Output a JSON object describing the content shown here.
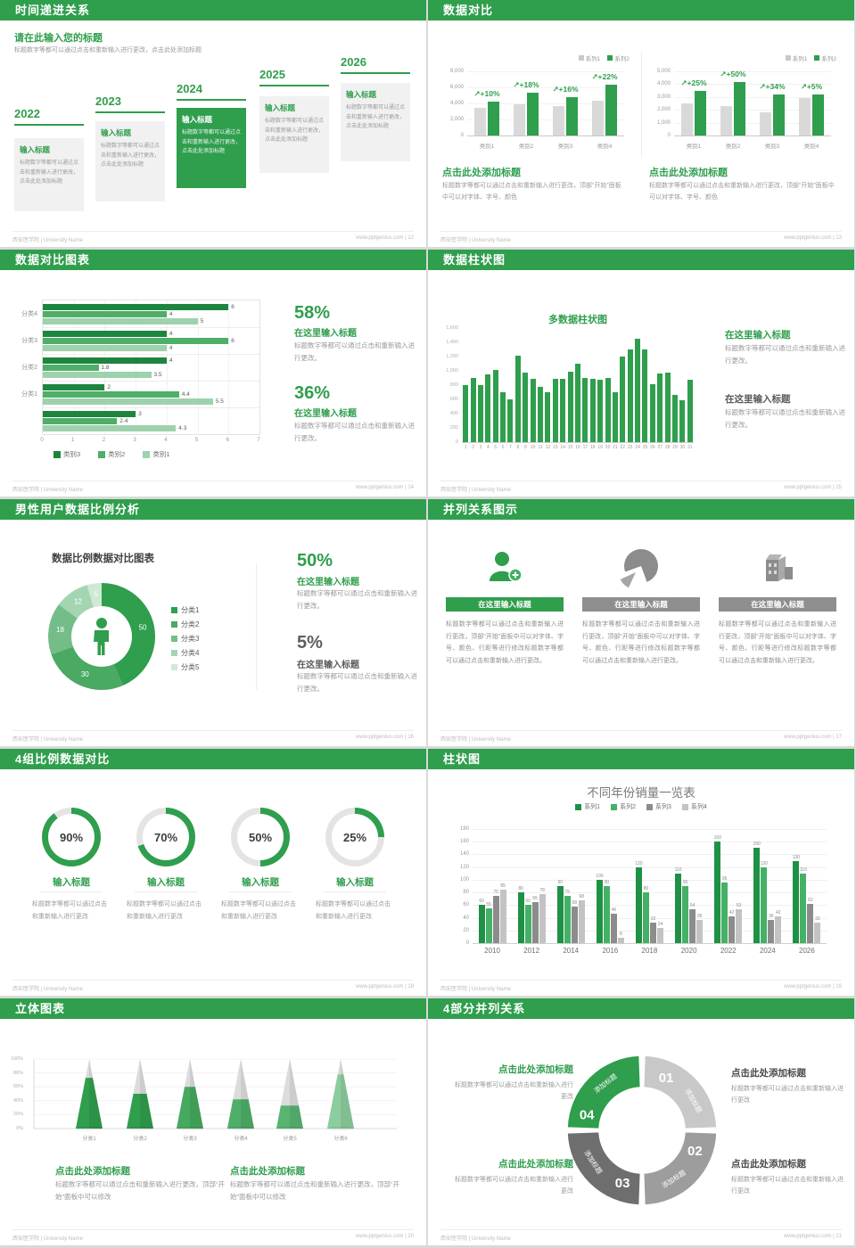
{
  "footer": {
    "left": "西安医学院 | University Name"
  },
  "colors": {
    "green": "#2f9e4d",
    "bar_gray": "#d9d9d9",
    "text_gray": "#9a9a9a"
  },
  "slides": {
    "s1": {
      "title": "时间递进关系",
      "page_label": "www.pptgenius.com | 12",
      "heading": "请在此输入您的标题",
      "intro": "标题数字等都可以通过点击和重新输入进行更改，点击此处添加标题",
      "highlight_index": 2,
      "items": [
        {
          "year": "2022",
          "title": "输入标题",
          "body": "标题数字等都可以通过点击和重新输入进行更改，点击此处添加标题"
        },
        {
          "year": "2023",
          "title": "输入标题",
          "body": "标题数字等都可以通过点击和重新输入进行更改，点击此处添加标题"
        },
        {
          "year": "2024",
          "title": "输入标题",
          "body": "标题数字等都可以通过点击和重新输入进行更改，点击此处添加标题"
        },
        {
          "year": "2025",
          "title": "输入标题",
          "body": "标题数字等都可以通过点击和重新输入进行更改，点击此处添加标题"
        },
        {
          "year": "2026",
          "title": "输入标题",
          "body": "标题数字等都可以通过点击和重新输入进行更改，点击此处添加标题"
        }
      ]
    },
    "s2": {
      "title": "数据对比",
      "page_label": "www.pptgenius.com | 13",
      "legend": [
        "系列1",
        "系列2"
      ],
      "charts": [
        {
          "yticks": [
            "8,000",
            "6,000",
            "4,000",
            "2,000",
            "0"
          ],
          "ymax": 8000,
          "categories": [
            "类别1",
            "类别2",
            "类别3",
            "类别4"
          ],
          "gray": [
            3500,
            3900,
            3700,
            4300
          ],
          "green": [
            4200,
            5300,
            4800,
            6300
          ],
          "pct": [
            "+10%",
            "+18%",
            "+16%",
            "+22%"
          ]
        },
        {
          "yticks": [
            "5,000",
            "4,000",
            "3,000",
            "2,000",
            "1,000",
            "0"
          ],
          "ymax": 5000,
          "categories": [
            "类别1",
            "类别2",
            "类别3",
            "类别4"
          ],
          "gray": [
            2500,
            2300,
            1800,
            2900
          ],
          "green": [
            3500,
            4200,
            3200,
            3200
          ],
          "pct": [
            "+25%",
            "+50%",
            "+34%",
            "+5%"
          ]
        }
      ],
      "block": {
        "heading": "点击此处添加标题",
        "body": "标题数字等都可以通过点击和重新输入进行更改，顶部“开始”面板中可以对字体、字号、颜色"
      }
    },
    "s3": {
      "title": "数据对比图表",
      "page_label": "www.pptgenius.com | 14",
      "chart": {
        "type": "bar-horizontal",
        "groups": [
          "分类4",
          "分类3",
          "分类2",
          "分类1",
          ""
        ],
        "values": [
          [
            6,
            4,
            5
          ],
          [
            4,
            6,
            4
          ],
          [
            4,
            1.8,
            3.5
          ],
          [
            2,
            4.4,
            5.5
          ],
          [
            3,
            2.4,
            4.3
          ]
        ],
        "legend": [
          "类别3",
          "类别2",
          "类别1"
        ],
        "colors": [
          "#1e8540",
          "#4fae68",
          "#9ed2ac"
        ],
        "xticks": [
          0,
          1,
          2,
          3,
          4,
          5,
          6,
          7
        ],
        "xmax": 7
      },
      "stats": [
        {
          "num": "58%",
          "heading": "在这里输入标题",
          "body": "标题数字等都可以通过点击和重新输入进行更改。"
        },
        {
          "num": "36%",
          "heading": "在这里输入标题",
          "body": "标题数字等都可以通过点击和重新输入进行更改。"
        }
      ]
    },
    "s4": {
      "title": "数据柱状图",
      "page_label": "www.pptgenius.com | 15",
      "chart_title": "多数据柱状图",
      "yticks": [
        "1,600",
        "1,400",
        "1,200",
        "1,000",
        "800",
        "600",
        "400",
        "200",
        "0"
      ],
      "ymax": 1600,
      "values": [
        800,
        900,
        800,
        950,
        1010,
        700,
        600,
        1210,
        980,
        890,
        780,
        700,
        890,
        890,
        990,
        1100,
        900,
        890,
        880,
        900,
        700,
        1200,
        1300,
        1450,
        1300,
        810,
        960,
        970,
        660,
        590,
        870
      ],
      "blocks": [
        {
          "heading": "在这里输入标题",
          "body": "标题数字等都可以通过点击和重新输入进行更改。",
          "green": true
        },
        {
          "heading": "在这里输入标题",
          "body": "标题数字等都可以通过点击和重新输入进行更改。",
          "green": false
        }
      ]
    },
    "s5": {
      "title": "男性用户数据比例分析",
      "page_label": "www.pptgenius.com | 16",
      "chart_title": "数据比例数据对比图表",
      "slices": [
        {
          "label": "50",
          "value": 50
        },
        {
          "label": "30",
          "value": 30
        },
        {
          "label": "18",
          "value": 18
        },
        {
          "label": "12",
          "value": 12
        },
        {
          "label": "5",
          "value": 5
        }
      ],
      "slice_colors": [
        "#2f9e4d",
        "#4aa963",
        "#74bd88",
        "#a4d5b1",
        "#cfe9d6"
      ],
      "legend": [
        "分类1",
        "分类2",
        "分类3",
        "分类4",
        "分类5"
      ],
      "stats": [
        {
          "num": "50%",
          "heading": "在这里输入标题",
          "body": "标题数字等都可以通过点击和重新输入进行更改。",
          "green": true
        },
        {
          "num": "5%",
          "heading": "在这里输入标题",
          "body": "标题数字等都可以通过点击和重新输入进行更改。",
          "green": false
        }
      ]
    },
    "s6": {
      "title": "并列关系图示",
      "page_label": "www.pptgenius.com | 17",
      "columns": [
        {
          "icon": "person-add-icon",
          "banner": "在这里输入标题",
          "green": true,
          "body": "标题数字等都可以通过点击和重新输入进行更改，顶部“开始”面板中可以对字体、字号、颜色、行距等进行修改标题数字等都可以通过点击和重新输入进行更改。"
        },
        {
          "icon": "pie-3d-icon",
          "banner": "在这里输入标题",
          "green": false,
          "body": "标题数字等都可以通过点击和重新输入进行更改，顶部“开始”面板中可以对字体、字号、颜色、行距等进行修改标题数字等都可以通过点击和重新输入进行更改。"
        },
        {
          "icon": "building-icon",
          "banner": "在这里输入标题",
          "green": false,
          "body": "标题数字等都可以通过点击和重新输入进行更改，顶部“开始”面板中可以对字体、字号、颜色、行距等进行修改标题数字等都可以通过点击和重新输入进行更改。"
        }
      ]
    },
    "s7": {
      "title": "4组比例数据对比",
      "page_label": "www.pptgenius.com | 18",
      "items": [
        {
          "pct": 90,
          "label": "90%",
          "title": "输入标题",
          "body": "标题数字等都可以通过点击和重新输入进行更改"
        },
        {
          "pct": 70,
          "label": "70%",
          "title": "输入标题",
          "body": "标题数字等都可以通过点击和重新输入进行更改"
        },
        {
          "pct": 50,
          "label": "50%",
          "title": "输入标题",
          "body": "标题数字等都可以通过点击和重新输入进行更改"
        },
        {
          "pct": 25,
          "label": "25%",
          "title": "输入标题",
          "body": "标题数字等都可以通过点击和重新输入进行更改"
        }
      ]
    },
    "s8": {
      "title": "柱状图",
      "page_label": "www.pptgenius.com | 19",
      "chart_title": "不同年份销量一览表",
      "legend": [
        "系列1",
        "系列2",
        "系列3",
        "系列4"
      ],
      "series_colors": [
        "#1f9145",
        "#44b166",
        "#8c8c8c",
        "#c3c3c3"
      ],
      "years": [
        "2010",
        "2012",
        "2014",
        "2016",
        "2018",
        "2020",
        "2022",
        "2024",
        "2026"
      ],
      "series": [
        [
          60,
          80,
          90,
          100,
          120,
          110,
          160,
          150,
          130
        ],
        [
          55,
          60,
          75,
          90,
          80,
          90,
          96,
          120,
          110
        ],
        [
          75,
          65,
          58,
          46,
          32,
          54,
          42,
          36,
          62
        ],
        [
          85,
          78,
          68,
          8,
          24,
          36,
          53,
          42,
          32
        ]
      ],
      "ymax": 180,
      "yticks": [
        "180",
        "160",
        "140",
        "120",
        "100",
        "80",
        "60",
        "40",
        "20",
        "0"
      ]
    },
    "s9": {
      "title": "立体图表",
      "page_label": "www.pptgenius.com | 20",
      "categories": [
        "分类1",
        "分类2",
        "分类3",
        "分类4",
        "分类5",
        "分类6"
      ],
      "fills": [
        0.73,
        0.5,
        0.6,
        0.42,
        0.33,
        0.78
      ],
      "cone_colors": [
        "#2f9e4d",
        "#2f9e4d",
        "#45a95f",
        "#4fae68",
        "#57b471",
        "#8ccd9e"
      ],
      "yticks": [
        "0%",
        "20%",
        "40%",
        "60%",
        "80%",
        "100%"
      ],
      "blocks": [
        {
          "heading": "点击此处添加标题",
          "body": "标题数字等都可以通过点击和重新输入进行更改，顶部“开始”面板中可以修改"
        },
        {
          "heading": "点击此处添加标题",
          "body": "标题数字等都可以通过点击和重新输入进行更改，顶部“开始”面板中可以修改"
        }
      ]
    },
    "s10": {
      "title": "4部分并列关系",
      "page_label": "www.pptgenius.com | 21",
      "segments": [
        {
          "num": "01",
          "label": "添加标题",
          "color": "#c8c8c8",
          "a0": 2,
          "a1": 88
        },
        {
          "num": "02",
          "label": "添加标题",
          "color": "#9d9d9d",
          "a0": 92,
          "a1": 178
        },
        {
          "num": "03",
          "label": "添加标题",
          "color": "#6e6e6e",
          "a0": 182,
          "a1": 268
        },
        {
          "num": "04",
          "label": "添加标题",
          "color": "#2f9e4d",
          "a0": 272,
          "a1": 358
        }
      ],
      "blocks": [
        {
          "heading": "点击此处添加标题",
          "body": "标题数字等都可以通过点击和重新输入进行更改",
          "green": true
        },
        {
          "heading": "点击此处添加标题",
          "body": "标题数字等都可以通过点击和重新输入进行更改",
          "green": false
        },
        {
          "heading": "点击此处添加标题",
          "body": "标题数字等都可以通过点击和重新输入进行更改",
          "green": true
        },
        {
          "heading": "点击此处添加标题",
          "body": "标题数字等都可以通过点击和重新输入进行更改",
          "green": false
        }
      ]
    }
  }
}
